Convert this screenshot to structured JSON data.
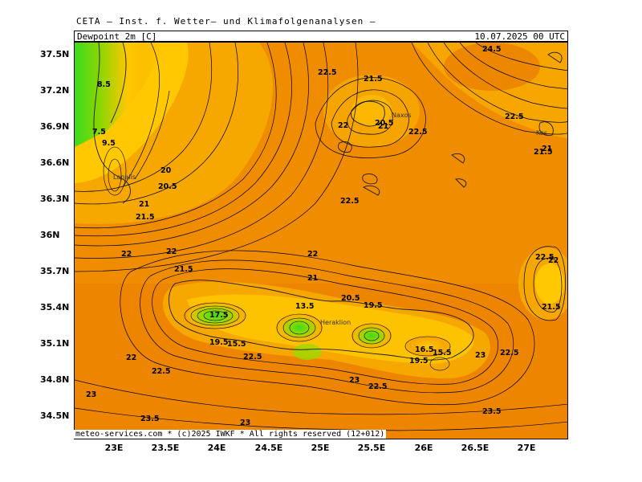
{
  "header": {
    "provider_line": "CETA — Inst. f. Wetter— und Klimafolgenanalysen —",
    "parameter": "Dewpoint 2m [C]",
    "valid_time": "10.07.2025  00 UTC"
  },
  "footer": {
    "credit": "meteo-services.com * (c)2025 IWKF * All rights reserved (12+012)"
  },
  "axes": {
    "latitude_labels": [
      "37.5N",
      "37.2N",
      "36.9N",
      "36.6N",
      "36.3N",
      "36N",
      "35.7N",
      "35.4N",
      "35.1N",
      "34.8N",
      "34.5N"
    ],
    "longitude_labels": [
      "23E",
      "23.5E",
      "24E",
      "24.5E",
      "25E",
      "25.5E",
      "26E",
      "26.5E",
      "27E"
    ]
  },
  "map": {
    "colors": {
      "orange": "#f08c00",
      "dark_orange": "#e87a00",
      "amber": "#f7a800",
      "yellow": "#ffc800",
      "yellow_green": "#c8d200",
      "green": "#7ed600",
      "bright_green": "#3cdc1e",
      "contour": "#000000",
      "land_outline": "#1a1a1a"
    },
    "place_names": [
      "Naxos",
      "Heraklion",
      "Kos",
      "Lapalis"
    ],
    "contour_labels": [
      "22.5",
      "21.5",
      "20.5",
      "22",
      "21",
      "22.5",
      "8.5",
      "7.5",
      "9.5",
      "20",
      "20.5",
      "21",
      "21.5",
      "22",
      "22.5",
      "22",
      "21.5",
      "21",
      "13.5",
      "20.5",
      "19.5",
      "22",
      "17.5",
      "19.5",
      "15.5",
      "22.5",
      "22",
      "22.5",
      "23",
      "23.5",
      "23",
      "22.5",
      "23",
      "19.5",
      "15.5",
      "16.5",
      "22.5",
      "23",
      "22.5",
      "22",
      "21.5",
      "24.5",
      "23.5",
      "22.5",
      "21",
      "21.5"
    ]
  }
}
